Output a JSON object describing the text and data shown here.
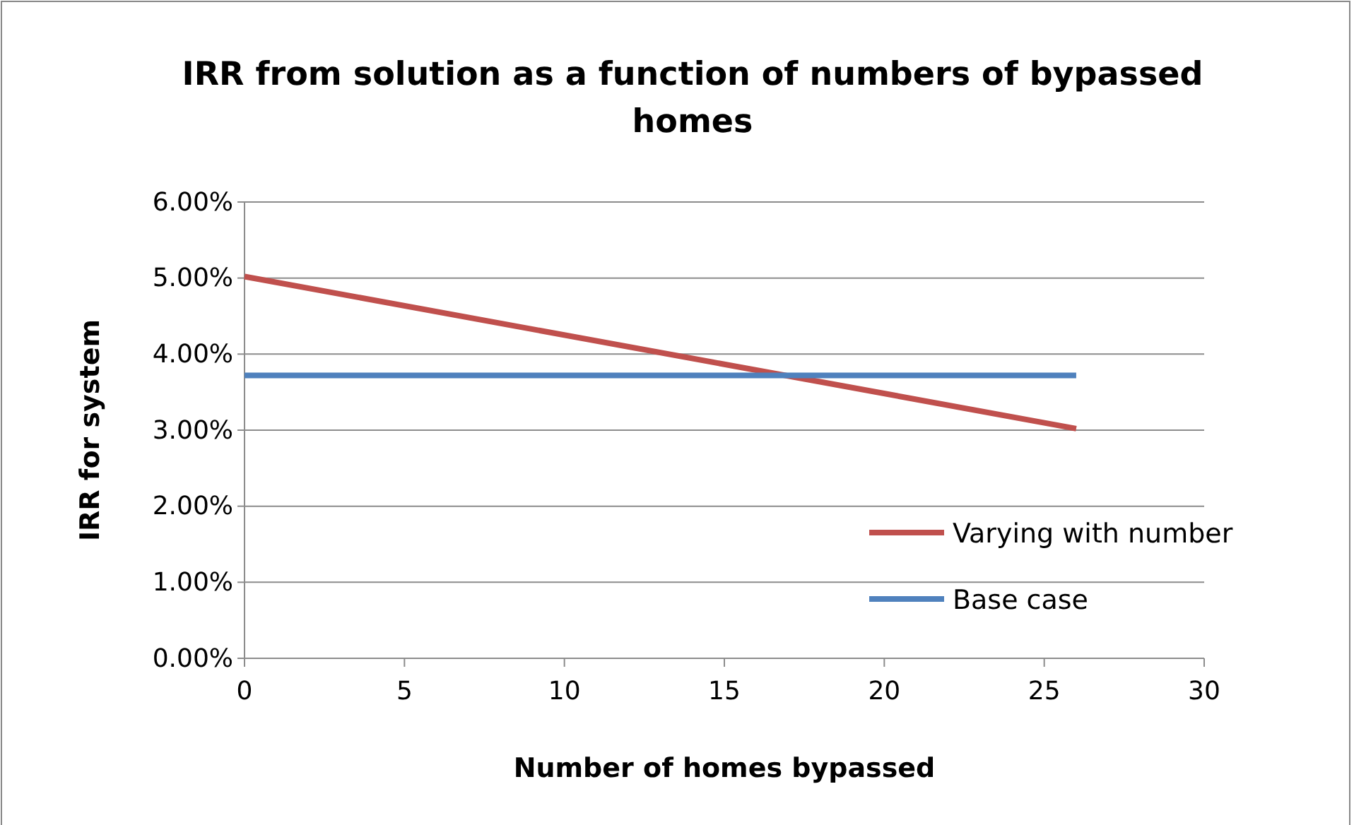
{
  "chart_data": {
    "type": "line",
    "title": "IRR from solution as a function of numbers of bypassed homes",
    "xlabel": "Number of homes bypassed",
    "ylabel": "IRR for system",
    "xlim": [
      0,
      30
    ],
    "xticks": [
      0,
      5,
      10,
      15,
      20,
      25,
      30
    ],
    "ylim": [
      0,
      6
    ],
    "yticks": [
      {
        "value": 0,
        "label": "0.00%"
      },
      {
        "value": 1,
        "label": "1.00%"
      },
      {
        "value": 2,
        "label": "2.00%"
      },
      {
        "value": 3,
        "label": "3.00%"
      },
      {
        "value": 4,
        "label": "4.00%"
      },
      {
        "value": 5,
        "label": "5.00%"
      },
      {
        "value": 6,
        "label": "6.00%"
      }
    ],
    "x": [
      0,
      26
    ],
    "grid": "y",
    "legend": "right",
    "marker": "none",
    "line_style": "solid",
    "series": [
      {
        "name": "Varying with number",
        "color": "#c0504d",
        "values": [
          5.02,
          3.02
        ]
      },
      {
        "name": "Base case",
        "color": "#4f81bd",
        "values": [
          3.72,
          3.72
        ]
      }
    ]
  }
}
